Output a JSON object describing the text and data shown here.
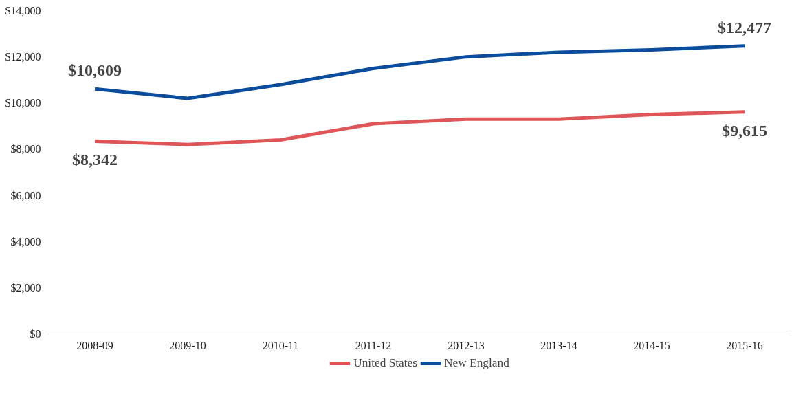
{
  "chart_data": {
    "type": "line",
    "categories": [
      "2008-09",
      "2009-10",
      "2010-11",
      "2011-12",
      "2012-13",
      "2013-14",
      "2014-15",
      "2015-16"
    ],
    "series": [
      {
        "name": "United States",
        "color": "#e05558",
        "values": [
          8342,
          8200,
          8400,
          9100,
          9300,
          9300,
          9500,
          9615
        ],
        "value_labels": [
          "$8,342",
          null,
          null,
          null,
          null,
          null,
          null,
          "$9,615"
        ]
      },
      {
        "name": "New England",
        "color": "#0b4d9c",
        "values": [
          10609,
          10200,
          10800,
          11500,
          12000,
          12200,
          12300,
          12477
        ],
        "value_labels": [
          "$10,609",
          null,
          null,
          null,
          null,
          null,
          null,
          "$12,477"
        ]
      }
    ],
    "ylim": [
      0,
      14000
    ],
    "yticks": [
      {
        "value": 0,
        "label": "$0"
      },
      {
        "value": 2000,
        "label": "$2,000"
      },
      {
        "value": 4000,
        "label": "$4,000"
      },
      {
        "value": 6000,
        "label": "$6,000"
      },
      {
        "value": 8000,
        "label": "$8,000"
      },
      {
        "value": 10000,
        "label": "$10,000"
      },
      {
        "value": 12000,
        "label": "$12,000"
      },
      {
        "value": 14000,
        "label": "$14,000"
      }
    ],
    "grid": false,
    "legend": "bottom",
    "line_style": "solid",
    "marker": "none"
  }
}
